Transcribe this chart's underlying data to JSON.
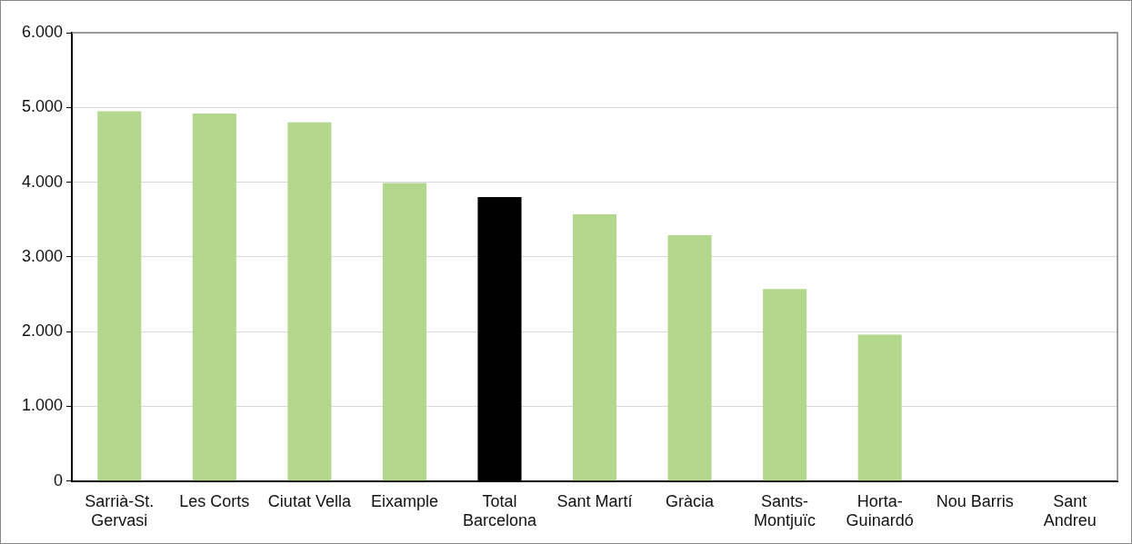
{
  "chart_data": {
    "type": "bar",
    "categories": [
      "Sarrià-St.\nGervasi",
      "Les Corts",
      "Ciutat Vella",
      "Eixample",
      "Total\nBarcelona",
      "Sant Martí",
      "Gràcia",
      "Sants-\nMontjuïc",
      "Horta-\nGuinardó",
      "Nou Barris",
      "Sant\nAndreu"
    ],
    "values": [
      4950,
      4920,
      4800,
      3990,
      3800,
      3570,
      3290,
      2570,
      1960,
      null,
      null
    ],
    "colors": [
      "#b3d78d",
      "#b3d78d",
      "#b3d78d",
      "#b3d78d",
      "#000000",
      "#b3d78d",
      "#b3d78d",
      "#b3d78d",
      "#b3d78d",
      "#b3d78d",
      "#b3d78d"
    ],
    "ylim": [
      0,
      6000
    ],
    "yticks": [
      {
        "value": 0,
        "label": "0"
      },
      {
        "value": 1000,
        "label": "1.000"
      },
      {
        "value": 2000,
        "label": "2.000"
      },
      {
        "value": 3000,
        "label": "3.000"
      },
      {
        "value": 4000,
        "label": "4.000"
      },
      {
        "value": 5000,
        "label": "5.000"
      },
      {
        "value": 6000,
        "label": "6.000"
      }
    ],
    "grid": "y",
    "legend": false
  }
}
